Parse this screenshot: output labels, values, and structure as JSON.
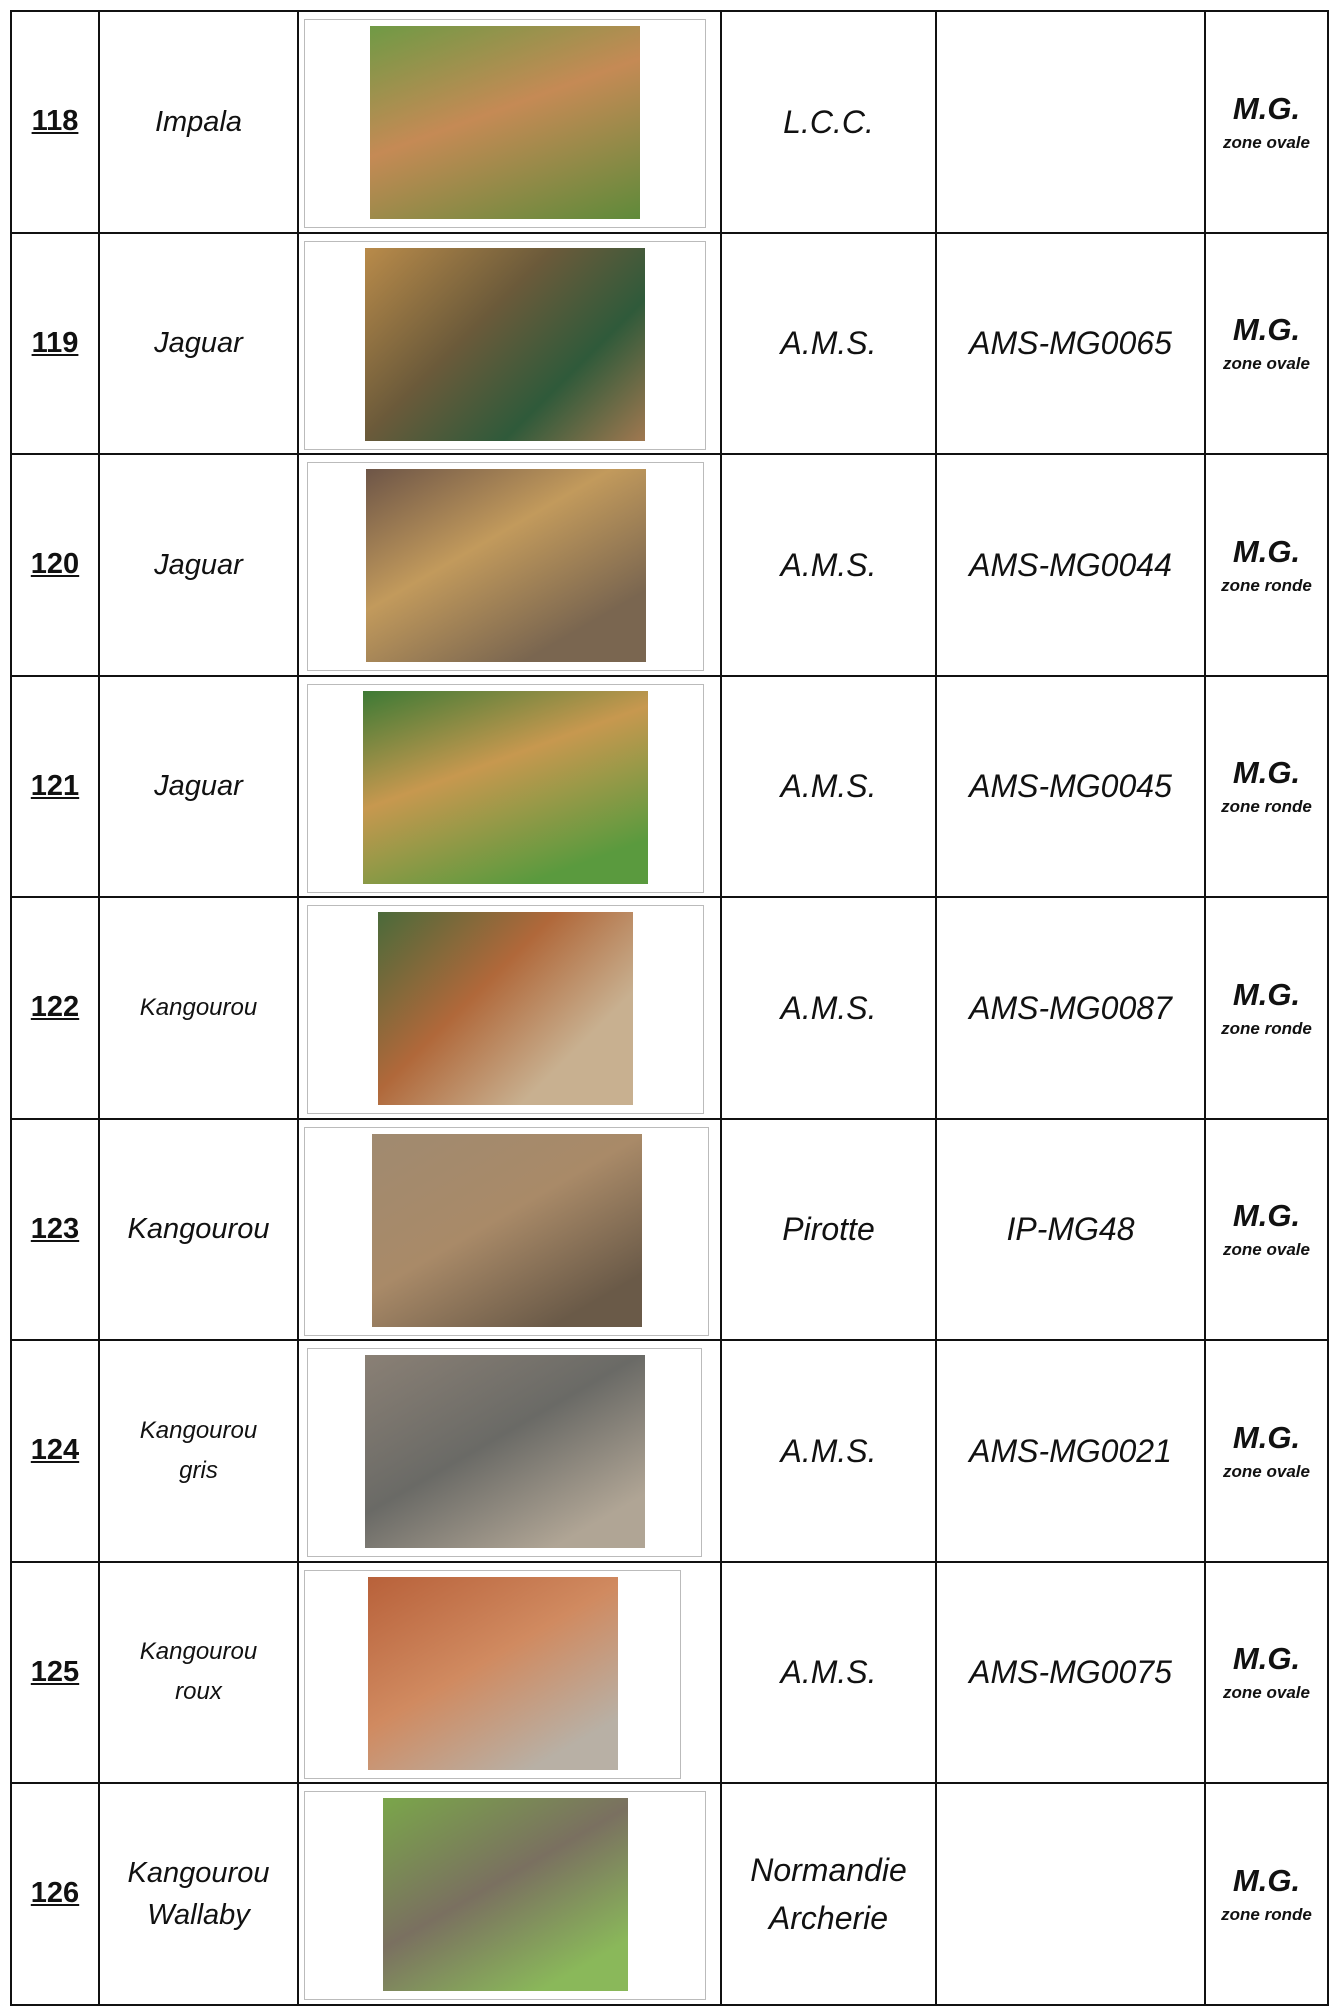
{
  "table": {
    "rows": [
      {
        "number": "118",
        "name": "Impala",
        "supplier": "L.C.C.",
        "reference": "",
        "category": "M.G.",
        "zone": "zone ovale"
      },
      {
        "number": "119",
        "name": "Jaguar",
        "supplier": "A.M.S.",
        "reference": "AMS-MG0065",
        "category": "M.G.",
        "zone": "zone ovale"
      },
      {
        "number": "120",
        "name": "Jaguar",
        "supplier": "A.M.S.",
        "reference": "AMS-MG0044",
        "category": "M.G.",
        "zone": "zone ronde"
      },
      {
        "number": "121",
        "name": "Jaguar",
        "supplier": "A.M.S.",
        "reference": "AMS-MG0045",
        "category": "M.G.",
        "zone": "zone ronde"
      },
      {
        "number": "122",
        "name": "Kangourou",
        "supplier": "A.M.S.",
        "reference": "AMS-MG0087",
        "category": "M.G.",
        "zone": "zone ronde"
      },
      {
        "number": "123",
        "name": "Kangourou",
        "supplier": "Pirotte",
        "reference": "IP-MG48",
        "category": "M.G.",
        "zone": "zone ovale"
      },
      {
        "number": "124",
        "name": "Kangourou gris",
        "supplier": "A.M.S.",
        "reference": "AMS-MG0021",
        "category": "M.G.",
        "zone": "zone ovale"
      },
      {
        "number": "125",
        "name": "Kangourou roux",
        "supplier": "A.M.S.",
        "reference": "AMS-MG0075",
        "category": "M.G.",
        "zone": "zone ovale"
      },
      {
        "number": "126",
        "name": "Kangourou Wallaby",
        "supplier": "Normandie Archerie",
        "reference": "",
        "category": "M.G.",
        "zone": "zone ronde"
      }
    ]
  }
}
